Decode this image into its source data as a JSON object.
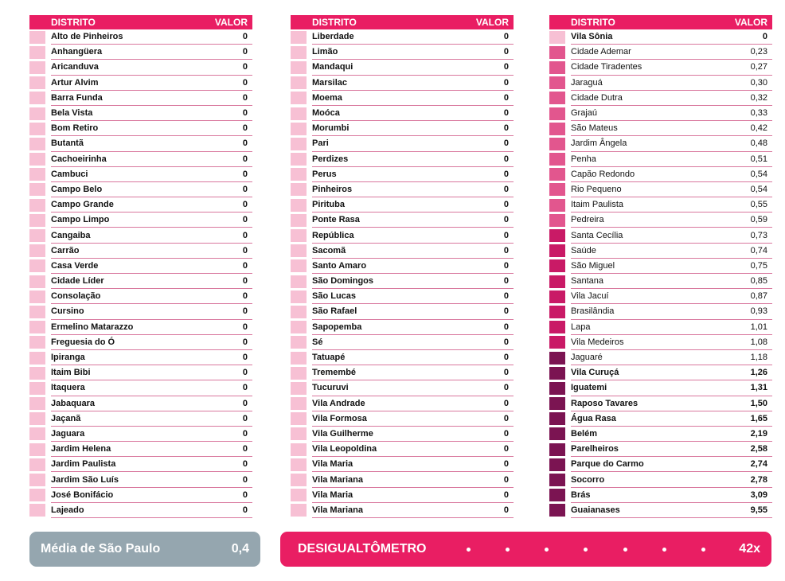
{
  "header": {
    "district_label": "DISTRITO",
    "value_label": "VALOR"
  },
  "level_colors": {
    "zero": "#f7c0d4",
    "low": "#e2568e",
    "mid": "#c91a66",
    "high": "#7b1452"
  },
  "columns": [
    [
      {
        "name": "Alto de Pinheiros",
        "value": "0",
        "level": "zero",
        "bold": true
      },
      {
        "name": "Anhangüera",
        "value": "0",
        "level": "zero",
        "bold": true
      },
      {
        "name": "Aricanduva",
        "value": "0",
        "level": "zero",
        "bold": true
      },
      {
        "name": "Artur Alvim",
        "value": "0",
        "level": "zero",
        "bold": true
      },
      {
        "name": "Barra Funda",
        "value": "0",
        "level": "zero",
        "bold": true
      },
      {
        "name": "Bela Vista",
        "value": "0",
        "level": "zero",
        "bold": true
      },
      {
        "name": "Bom Retiro",
        "value": "0",
        "level": "zero",
        "bold": true
      },
      {
        "name": "Butantã",
        "value": "0",
        "level": "zero",
        "bold": true
      },
      {
        "name": "Cachoeirinha",
        "value": "0",
        "level": "zero",
        "bold": true
      },
      {
        "name": "Cambuci",
        "value": "0",
        "level": "zero",
        "bold": true
      },
      {
        "name": "Campo Belo",
        "value": "0",
        "level": "zero",
        "bold": true
      },
      {
        "name": "Campo Grande",
        "value": "0",
        "level": "zero",
        "bold": true
      },
      {
        "name": "Campo Limpo",
        "value": "0",
        "level": "zero",
        "bold": true
      },
      {
        "name": "Cangaiba",
        "value": "0",
        "level": "zero",
        "bold": true
      },
      {
        "name": "Carrão",
        "value": "0",
        "level": "zero",
        "bold": true
      },
      {
        "name": "Casa Verde",
        "value": "0",
        "level": "zero",
        "bold": true
      },
      {
        "name": "Cidade Líder",
        "value": "0",
        "level": "zero",
        "bold": true
      },
      {
        "name": "Consolação",
        "value": "0",
        "level": "zero",
        "bold": true
      },
      {
        "name": "Cursino",
        "value": "0",
        "level": "zero",
        "bold": true
      },
      {
        "name": "Ermelino Matarazzo",
        "value": "0",
        "level": "zero",
        "bold": true
      },
      {
        "name": "Freguesia do Ó",
        "value": "0",
        "level": "zero",
        "bold": true
      },
      {
        "name": "Ipiranga",
        "value": "0",
        "level": "zero",
        "bold": true
      },
      {
        "name": "Itaim Bibi",
        "value": "0",
        "level": "zero",
        "bold": true
      },
      {
        "name": "Itaquera",
        "value": "0",
        "level": "zero",
        "bold": true
      },
      {
        "name": "Jabaquara",
        "value": "0",
        "level": "zero",
        "bold": true
      },
      {
        "name": "Jaçanã",
        "value": "0",
        "level": "zero",
        "bold": true
      },
      {
        "name": "Jaguara",
        "value": "0",
        "level": "zero",
        "bold": true
      },
      {
        "name": "Jardim Helena",
        "value": "0",
        "level": "zero",
        "bold": true
      },
      {
        "name": "Jardim Paulista",
        "value": "0",
        "level": "zero",
        "bold": true
      },
      {
        "name": "Jardim São Luís",
        "value": "0",
        "level": "zero",
        "bold": true
      },
      {
        "name": "José Bonifácio",
        "value": "0",
        "level": "zero",
        "bold": true
      },
      {
        "name": "Lajeado",
        "value": "0",
        "level": "zero",
        "bold": true
      }
    ],
    [
      {
        "name": "Liberdade",
        "value": "0",
        "level": "zero",
        "bold": true
      },
      {
        "name": "Limão",
        "value": "0",
        "level": "zero",
        "bold": true
      },
      {
        "name": "Mandaqui",
        "value": "0",
        "level": "zero",
        "bold": true
      },
      {
        "name": "Marsilac",
        "value": "0",
        "level": "zero",
        "bold": true
      },
      {
        "name": "Moema",
        "value": "0",
        "level": "zero",
        "bold": true
      },
      {
        "name": "Moóca",
        "value": "0",
        "level": "zero",
        "bold": true
      },
      {
        "name": "Morumbi",
        "value": "0",
        "level": "zero",
        "bold": true
      },
      {
        "name": "Pari",
        "value": "0",
        "level": "zero",
        "bold": true
      },
      {
        "name": "Perdizes",
        "value": "0",
        "level": "zero",
        "bold": true
      },
      {
        "name": "Perus",
        "value": "0",
        "level": "zero",
        "bold": true
      },
      {
        "name": "Pinheiros",
        "value": "0",
        "level": "zero",
        "bold": true
      },
      {
        "name": "Pirituba",
        "value": "0",
        "level": "zero",
        "bold": true
      },
      {
        "name": "Ponte Rasa",
        "value": "0",
        "level": "zero",
        "bold": true
      },
      {
        "name": "República",
        "value": "0",
        "level": "zero",
        "bold": true
      },
      {
        "name": "Sacomã",
        "value": "0",
        "level": "zero",
        "bold": true
      },
      {
        "name": "Santo Amaro",
        "value": "0",
        "level": "zero",
        "bold": true
      },
      {
        "name": "São Domingos",
        "value": "0",
        "level": "zero",
        "bold": true
      },
      {
        "name": "São Lucas",
        "value": "0",
        "level": "zero",
        "bold": true
      },
      {
        "name": "São Rafael",
        "value": "0",
        "level": "zero",
        "bold": true
      },
      {
        "name": "Sapopemba",
        "value": "0",
        "level": "zero",
        "bold": true
      },
      {
        "name": "Sé",
        "value": "0",
        "level": "zero",
        "bold": true
      },
      {
        "name": "Tatuapé",
        "value": "0",
        "level": "zero",
        "bold": true
      },
      {
        "name": "Tremembé",
        "value": "0",
        "level": "zero",
        "bold": true
      },
      {
        "name": "Tucuruvi",
        "value": "0",
        "level": "zero",
        "bold": true
      },
      {
        "name": "Vila Andrade",
        "value": "0",
        "level": "zero",
        "bold": true
      },
      {
        "name": "Vila Formosa",
        "value": "0",
        "level": "zero",
        "bold": true
      },
      {
        "name": "Vila Guilherme",
        "value": "0",
        "level": "zero",
        "bold": true
      },
      {
        "name": "Vila Leopoldina",
        "value": "0",
        "level": "zero",
        "bold": true
      },
      {
        "name": "Vila Maria",
        "value": "0",
        "level": "zero",
        "bold": true
      },
      {
        "name": "Vila Mariana",
        "value": "0",
        "level": "zero",
        "bold": true
      },
      {
        "name": "Vila Maria",
        "value": "0",
        "level": "zero",
        "bold": true
      },
      {
        "name": "Vila Mariana",
        "value": "0",
        "level": "zero",
        "bold": true
      }
    ],
    [
      {
        "name": "Vila Sônia",
        "value": "0",
        "level": "zero",
        "bold": true
      },
      {
        "name": "Cidade Ademar",
        "value": "0,23",
        "level": "low",
        "bold": false
      },
      {
        "name": "Cidade Tiradentes",
        "value": "0,27",
        "level": "low",
        "bold": false
      },
      {
        "name": "Jaraguá",
        "value": "0,30",
        "level": "low",
        "bold": false
      },
      {
        "name": "Cidade Dutra",
        "value": "0,32",
        "level": "low",
        "bold": false
      },
      {
        "name": "Grajaú",
        "value": "0,33",
        "level": "low",
        "bold": false
      },
      {
        "name": "São Mateus",
        "value": "0,42",
        "level": "low",
        "bold": false
      },
      {
        "name": "Jardim Ângela",
        "value": "0,48",
        "level": "low",
        "bold": false
      },
      {
        "name": "Penha",
        "value": "0,51",
        "level": "low",
        "bold": false
      },
      {
        "name": "Capão Redondo",
        "value": "0,54",
        "level": "low",
        "bold": false
      },
      {
        "name": "Rio Pequeno",
        "value": "0,54",
        "level": "low",
        "bold": false
      },
      {
        "name": "Itaim Paulista",
        "value": "0,55",
        "level": "low",
        "bold": false
      },
      {
        "name": "Pedreira",
        "value": "0,59",
        "level": "low",
        "bold": false
      },
      {
        "name": "Santa Cecília",
        "value": "0,73",
        "level": "mid",
        "bold": false
      },
      {
        "name": "Saúde",
        "value": "0,74",
        "level": "mid",
        "bold": false
      },
      {
        "name": "São Miguel",
        "value": "0,75",
        "level": "mid",
        "bold": false
      },
      {
        "name": "Santana",
        "value": "0,85",
        "level": "mid",
        "bold": false
      },
      {
        "name": "Vila Jacuí",
        "value": "0,87",
        "level": "mid",
        "bold": false
      },
      {
        "name": "Brasilândia",
        "value": "0,93",
        "level": "mid",
        "bold": false
      },
      {
        "name": "Lapa",
        "value": "1,01",
        "level": "mid",
        "bold": false
      },
      {
        "name": "Vila Medeiros",
        "value": "1,08",
        "level": "mid",
        "bold": false
      },
      {
        "name": "Jaguaré",
        "value": "1,18",
        "level": "high",
        "bold": false
      },
      {
        "name": "Vila Curuçá",
        "value": "1,26",
        "level": "high",
        "bold": true
      },
      {
        "name": "Iguatemi",
        "value": "1,31",
        "level": "high",
        "bold": true
      },
      {
        "name": "Raposo Tavares",
        "value": "1,50",
        "level": "high",
        "bold": true
      },
      {
        "name": "Água Rasa",
        "value": "1,65",
        "level": "high",
        "bold": true
      },
      {
        "name": "Belém",
        "value": "2,19",
        "level": "high",
        "bold": true
      },
      {
        "name": "Parelheiros",
        "value": "2,58",
        "level": "high",
        "bold": true
      },
      {
        "name": "Parque do Carmo",
        "value": "2,74",
        "level": "high",
        "bold": true
      },
      {
        "name": "Socorro",
        "value": "2,78",
        "level": "high",
        "bold": true
      },
      {
        "name": "Brás",
        "value": "3,09",
        "level": "high",
        "bold": true
      },
      {
        "name": "Guaianases",
        "value": "9,55",
        "level": "high",
        "bold": true
      }
    ]
  ],
  "average": {
    "label": "Média de São Paulo",
    "value": "0,4",
    "color": "#95a6af"
  },
  "desigualtometro": {
    "label": "DESIGUALTÔMETRO",
    "value": "42x",
    "color": "#e91e63"
  }
}
